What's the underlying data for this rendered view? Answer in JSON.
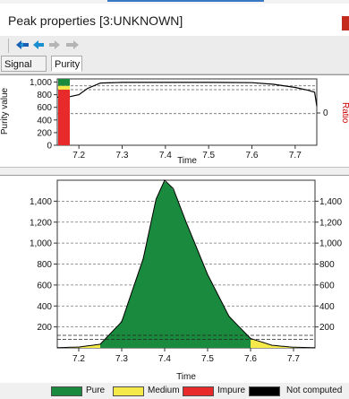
{
  "window": {
    "title": "Peak properties [3:UNKNOWN]"
  },
  "toolbar": {
    "icons": [
      "back-double-arrow-icon",
      "back-arrow-icon",
      "forward-arrow-icon",
      "forward-double-arrow-icon"
    ]
  },
  "tabs": [
    {
      "label": "Signal",
      "active": false
    },
    {
      "label": "Purity",
      "active": true
    }
  ],
  "colors": {
    "pure": "#1a8a3e",
    "medium": "#f5e94a",
    "impure": "#e82a2a",
    "not_computed": "#000000",
    "ratio_label": "#cc0000"
  },
  "purity_chart": {
    "ylabel": "Purity value",
    "xlabel": "Time",
    "right_label": "Ratio",
    "right_tick": "0",
    "y_ticks": [
      "1,000",
      "800",
      "600",
      "400",
      "200",
      "0"
    ],
    "x_ticks": [
      "7.2",
      "7.3",
      "7.4",
      "7.5",
      "7.6",
      "7.7"
    ]
  },
  "peak_chart": {
    "xlabel": "Time",
    "y_ticks_left": [
      "1,400",
      "1,200",
      "1,000",
      "800",
      "600",
      "400",
      "200"
    ],
    "y_ticks_right": [
      "1,400",
      "1,200",
      "1,000",
      "800",
      "600",
      "400",
      "200"
    ],
    "x_ticks": [
      "7.2",
      "7.3",
      "7.4",
      "7.5",
      "7.6",
      "7.7"
    ]
  },
  "chart_data": [
    {
      "type": "line",
      "xlabel": "Time",
      "ylabel": "Purity value",
      "xlim": [
        7.15,
        7.75
      ],
      "ylim": [
        0,
        1050
      ],
      "x": [
        7.15,
        7.17,
        7.18,
        7.2,
        7.22,
        7.25,
        7.3,
        7.4,
        7.5,
        7.6,
        7.65,
        7.7,
        7.73,
        7.745,
        7.75
      ],
      "series": [
        {
          "values": [
            760,
            760,
            770,
            800,
            900,
            985,
            995,
            995,
            995,
            990,
            965,
            915,
            870,
            840,
            620
          ]
        }
      ],
      "thresholds": [
        940,
        880,
        500
      ]
    },
    {
      "type": "area",
      "xlabel": "Time",
      "xlim": [
        7.15,
        7.75
      ],
      "ylim": [
        0,
        1600
      ],
      "x": [
        7.15,
        7.2,
        7.25,
        7.3,
        7.35,
        7.38,
        7.4,
        7.42,
        7.45,
        7.5,
        7.55,
        7.6,
        7.65,
        7.7,
        7.75
      ],
      "series": [
        {
          "values": [
            2,
            8,
            35,
            250,
            850,
            1420,
            1600,
            1520,
            1200,
            700,
            300,
            90,
            25,
            6,
            2
          ]
        }
      ],
      "thresholds": [
        120,
        80
      ],
      "purity_bands": [
        {
          "from": 7.15,
          "to": 7.25,
          "class": "Medium"
        },
        {
          "from": 7.25,
          "to": 7.6,
          "class": "Pure"
        },
        {
          "from": 7.6,
          "to": 7.75,
          "class": "Medium"
        }
      ]
    }
  ],
  "legend": [
    {
      "label": "Pure",
      "color": "#1a8a3e"
    },
    {
      "label": "Medium",
      "color": "#f5e94a"
    },
    {
      "label": "Impure",
      "color": "#e82a2a"
    },
    {
      "label": "Not computed",
      "color": "#000000"
    }
  ]
}
